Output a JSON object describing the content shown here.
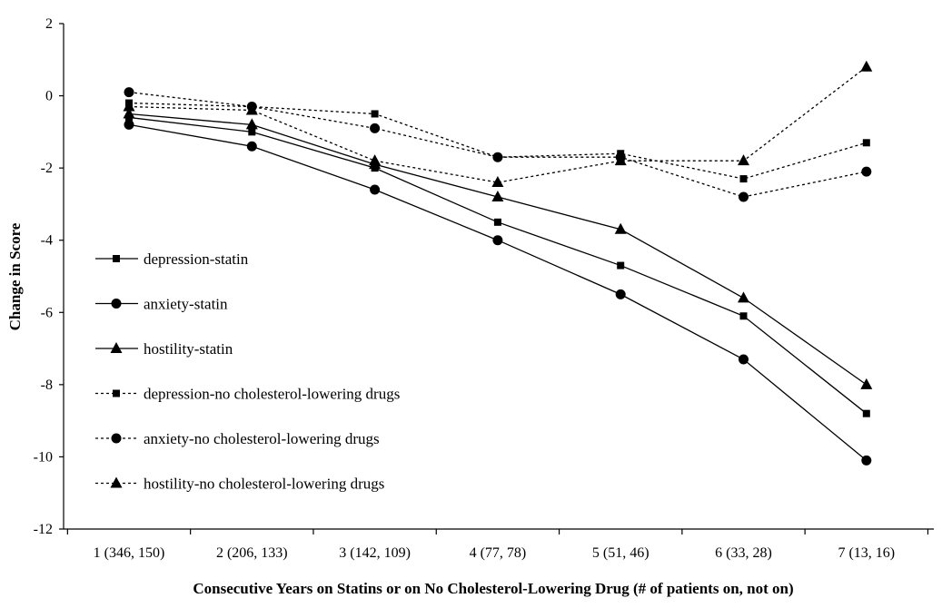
{
  "chart_data": {
    "type": "line",
    "title": "",
    "xlabel": "Consecutive Years on Statins or on No Cholesterol-Lowering Drug (# of patients on, not on)",
    "ylabel": "Change in Score",
    "categories": [
      "1 (346, 150)",
      "2 (206, 133)",
      "3 (142, 109)",
      "4 (77, 78)",
      "5 (51, 46)",
      "6 (33, 28)",
      "7 (13, 16)"
    ],
    "ylim": [
      -12,
      2
    ],
    "yticks": [
      2,
      0,
      -2,
      -4,
      -6,
      -8,
      -10,
      -12
    ],
    "ytick_labels": [
      "2",
      "0",
      "-2",
      "-4",
      "-6",
      "-8",
      "-10",
      "-12"
    ],
    "grid": false,
    "legend_position": "left",
    "series": [
      {
        "name": "depression-statin",
        "marker": "square",
        "line": "solid",
        "values": [
          -0.6,
          -1.0,
          -2.0,
          -3.5,
          -4.7,
          -6.1,
          -8.8
        ]
      },
      {
        "name": "anxiety-statin",
        "marker": "circle",
        "line": "solid",
        "values": [
          -0.8,
          -1.4,
          -2.6,
          -4.0,
          -5.5,
          -7.3,
          -10.1
        ]
      },
      {
        "name": "hostility-statin",
        "marker": "triangle",
        "line": "solid",
        "values": [
          -0.5,
          -0.8,
          -1.9,
          -2.8,
          -3.7,
          -5.6,
          -8.0
        ]
      },
      {
        "name": "depression-no cholesterol-lowering drugs",
        "marker": "square",
        "line": "dashed",
        "values": [
          -0.2,
          -0.3,
          -0.5,
          -1.7,
          -1.6,
          -2.3,
          -1.3
        ]
      },
      {
        "name": "anxiety-no cholesterol-lowering drugs",
        "marker": "circle",
        "line": "dashed",
        "values": [
          0.1,
          -0.3,
          -0.9,
          -1.7,
          -1.7,
          -2.8,
          -2.1
        ]
      },
      {
        "name": "hostility-no cholesterol-lowering drugs",
        "marker": "triangle",
        "line": "dashed",
        "values": [
          -0.3,
          -0.4,
          -1.8,
          -2.4,
          -1.8,
          -1.8,
          0.8
        ]
      }
    ]
  }
}
